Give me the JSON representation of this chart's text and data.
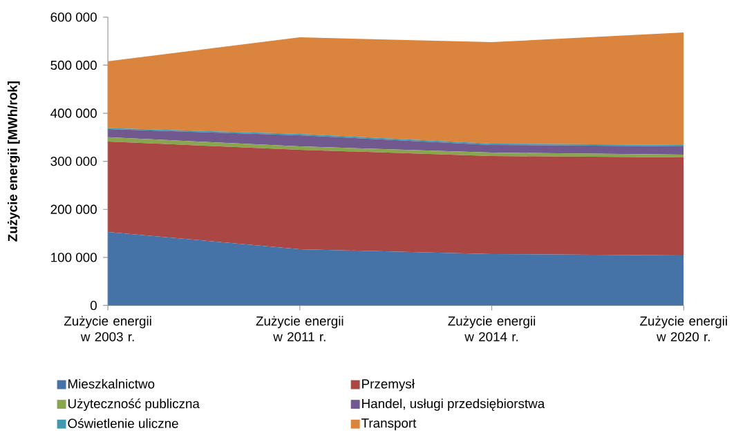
{
  "chart_data": {
    "type": "area",
    "stacked": true,
    "ylabel": "Zużycie energii [MWh/rok]",
    "categories": [
      "Zużycie energii w 2003 r.",
      "Zużycie energii w 2011 r.",
      "Zużycie energii w 2014 r.",
      "Zużycie energii w 2020 r."
    ],
    "series": [
      {
        "name": "Mieszkalnictwo",
        "color": "#4572a7",
        "values": [
          153000,
          117000,
          107000,
          104000
        ]
      },
      {
        "name": "Przemysł",
        "color": "#aa4643",
        "values": [
          188000,
          207000,
          204000,
          204000
        ]
      },
      {
        "name": "Użyteczność publiczna",
        "color": "#89a54e",
        "values": [
          9000,
          7000,
          7000,
          6000
        ]
      },
      {
        "name": "Handel, usługi przedsiębiorstwa",
        "color": "#71588f",
        "values": [
          17000,
          23000,
          16000,
          17000
        ]
      },
      {
        "name": "Oświetlenie uliczne",
        "color": "#4198af",
        "values": [
          2000,
          3000,
          3000,
          3000
        ]
      },
      {
        "name": "Transport",
        "color": "#db843d",
        "values": [
          139000,
          201000,
          211000,
          234000
        ]
      }
    ],
    "ylim": [
      0,
      600000
    ],
    "yticks": [
      {
        "value": 0,
        "label": "0"
      },
      {
        "value": 100000,
        "label": "100 000"
      },
      {
        "value": 200000,
        "label": "200 000"
      },
      {
        "value": 300000,
        "label": "300 000"
      },
      {
        "value": 400000,
        "label": "400 000"
      },
      {
        "value": 500000,
        "label": "500 000"
      },
      {
        "value": 600000,
        "label": "600 000"
      }
    ],
    "legend": "bottom"
  }
}
